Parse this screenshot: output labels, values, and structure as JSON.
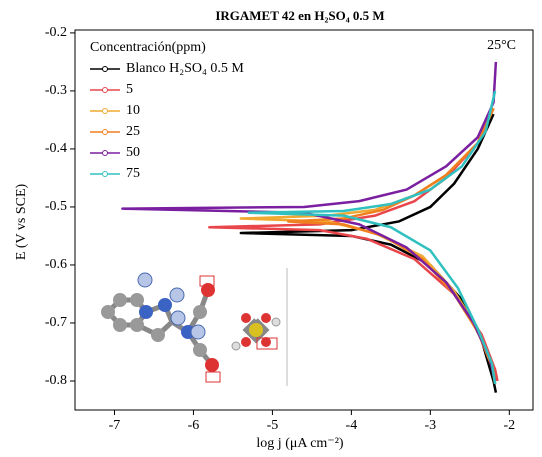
{
  "chart_data": {
    "type": "line",
    "title": "IRGAMET 42 en H₂SO₄ 0.5 M",
    "annotation": "25°C",
    "xlabel": "log j (μA cm⁻²)",
    "ylabel": "E (V vs SCE)",
    "legend_title": "Concentración(ppm)",
    "legend": "upper left",
    "xlim": [
      -7.5,
      -1.7
    ],
    "ylim": [
      -0.85,
      -0.195
    ],
    "xticks": [
      -7,
      -6,
      -5,
      -4,
      -3,
      -2
    ],
    "yticks": [
      -0.2,
      -0.3,
      -0.4,
      -0.5,
      -0.6,
      -0.7,
      -0.8
    ],
    "series": [
      {
        "name": "Blanco H₂SO₄ 0.5 M",
        "color": "#000000",
        "x": [
          -2.2,
          -2.4,
          -2.7,
          -3.0,
          -3.4,
          -4.0,
          -5.4,
          -4.0,
          -3.5,
          -3.0,
          -2.6,
          -2.35,
          -2.2,
          -2.17
        ],
        "values": [
          -0.34,
          -0.4,
          -0.46,
          -0.5,
          -0.525,
          -0.54,
          -0.545,
          -0.55,
          -0.565,
          -0.6,
          -0.66,
          -0.73,
          -0.8,
          -0.82
        ]
      },
      {
        "name": "5",
        "color": "#e8464a",
        "x": [
          -2.2,
          -2.4,
          -2.8,
          -3.2,
          -3.7,
          -4.4,
          -5.8,
          -4.4,
          -3.8,
          -3.2,
          -2.7,
          -2.35,
          -2.18,
          -2.15
        ],
        "values": [
          -0.33,
          -0.39,
          -0.45,
          -0.49,
          -0.515,
          -0.53,
          -0.535,
          -0.54,
          -0.555,
          -0.59,
          -0.65,
          -0.72,
          -0.78,
          -0.8
        ]
      },
      {
        "name": "10",
        "color": "#f0a830",
        "x": [
          -2.2,
          -2.4,
          -2.8,
          -3.2,
          -3.7,
          -4.3,
          -5.4,
          -4.3,
          -3.7,
          -3.1,
          -2.7,
          -2.4,
          -2.22,
          -2.18
        ],
        "values": [
          -0.33,
          -0.39,
          -0.445,
          -0.48,
          -0.505,
          -0.515,
          -0.52,
          -0.525,
          -0.545,
          -0.585,
          -0.645,
          -0.71,
          -0.77,
          -0.8
        ]
      },
      {
        "name": "25",
        "color": "#f07f20",
        "x": [
          -2.2,
          -2.4,
          -2.8,
          -3.2,
          -3.6,
          -4.1,
          -4.8,
          -4.1,
          -3.6,
          -3.1,
          -2.7,
          -2.4,
          -2.22,
          -2.18
        ],
        "values": [
          -0.33,
          -0.39,
          -0.445,
          -0.48,
          -0.505,
          -0.52,
          -0.525,
          -0.53,
          -0.55,
          -0.59,
          -0.65,
          -0.715,
          -0.775,
          -0.805
        ]
      },
      {
        "name": "50",
        "color": "#7a1fa0",
        "x": [
          -2.17,
          -2.2,
          -2.4,
          -2.8,
          -3.3,
          -3.9,
          -4.6,
          -6.9,
          -4.6,
          -3.9,
          -3.3,
          -2.8,
          -2.45,
          -2.25,
          -2.18
        ],
        "values": [
          -0.25,
          -0.32,
          -0.38,
          -0.43,
          -0.47,
          -0.49,
          -0.5,
          -0.503,
          -0.51,
          -0.53,
          -0.57,
          -0.63,
          -0.7,
          -0.76,
          -0.8
        ]
      },
      {
        "name": "75",
        "color": "#30c0c0",
        "x": [
          -2.18,
          -2.3,
          -2.6,
          -3.0,
          -3.5,
          -4.1,
          -5.3,
          -4.1,
          -3.5,
          -3.0,
          -2.65,
          -2.4,
          -2.22,
          -2.18
        ],
        "values": [
          -0.3,
          -0.37,
          -0.43,
          -0.47,
          -0.495,
          -0.507,
          -0.51,
          -0.515,
          -0.535,
          -0.575,
          -0.64,
          -0.71,
          -0.77,
          -0.805
        ]
      }
    ]
  }
}
